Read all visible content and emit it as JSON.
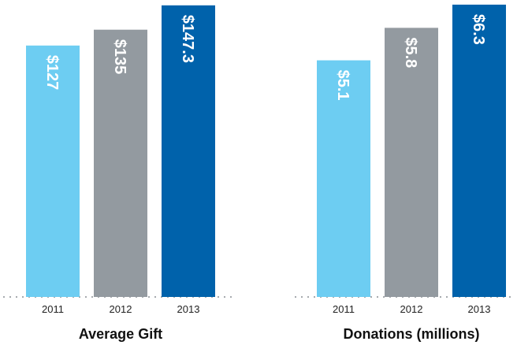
{
  "chart_data": [
    {
      "type": "bar",
      "title": "Average Gift",
      "categories": [
        "2011",
        "2012",
        "2013"
      ],
      "values": [
        127,
        135,
        147.3
      ],
      "value_labels": [
        "$127",
        "$135",
        "$147.3"
      ],
      "colors": [
        "#6dcdf2",
        "#939aa0",
        "#0062ab"
      ],
      "ylim": [
        0,
        150
      ]
    },
    {
      "type": "bar",
      "title": "Donations (millions)",
      "categories": [
        "2011",
        "2012",
        "2013"
      ],
      "values": [
        5.1,
        5.8,
        6.3
      ],
      "value_labels": [
        "$5.1",
        "$5.8",
        "$6.3"
      ],
      "colors": [
        "#6dcdf2",
        "#939aa0",
        "#0062ab"
      ],
      "ylim": [
        0,
        6.4
      ]
    }
  ]
}
